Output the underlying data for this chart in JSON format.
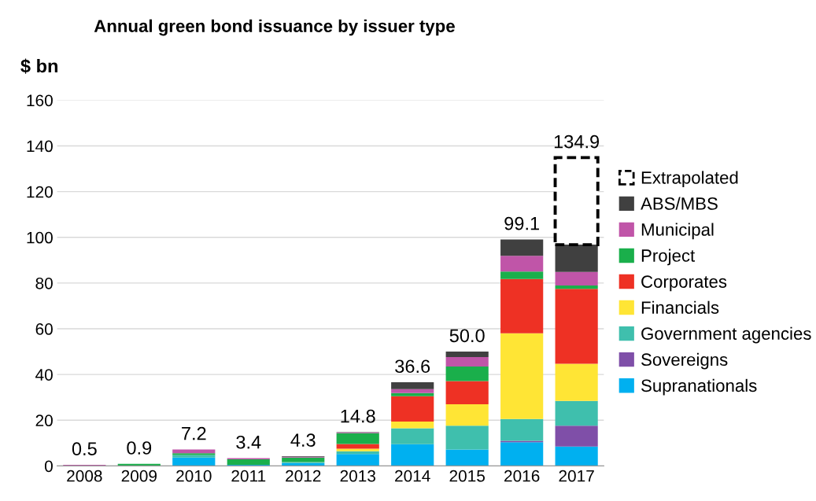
{
  "chart_data": {
    "type": "bar",
    "title": "Annual green bond issuance by issuer type",
    "ylabel": "$ bn",
    "categories": [
      "2008",
      "2009",
      "2010",
      "2011",
      "2012",
      "2013",
      "2014",
      "2015",
      "2016",
      "2017"
    ],
    "stacked": true,
    "series": [
      {
        "name": "Supranationals",
        "color": "#00b0f0",
        "values": [
          0,
          null,
          3.7,
          0.5,
          1.3,
          5.2,
          9.5,
          7.2,
          10.4,
          8.5
        ]
      },
      {
        "name": "Sovereigns",
        "color": "#7f4fa8",
        "values": [
          0,
          0,
          0,
          0,
          0,
          0,
          0,
          0,
          0.6,
          9.1
        ]
      },
      {
        "name": "Government agencies",
        "color": "#3fbfad",
        "values": [
          0,
          0,
          1.1,
          0,
          0.4,
          1.2,
          7.0,
          10.4,
          9.5,
          10.8
        ]
      },
      {
        "name": "Financials",
        "color": "#ffe535",
        "values": [
          0,
          0,
          0,
          0,
          0,
          1.1,
          2.9,
          9.4,
          37.5,
          16.3
        ]
      },
      {
        "name": "Corporates",
        "color": "#ee3124",
        "values": [
          0,
          0,
          0,
          0,
          0,
          2.1,
          11.1,
          10.1,
          23.8,
          32.8
        ]
      },
      {
        "name": "Project",
        "color": "#1aaf4b",
        "values": [
          0,
          0.9,
          0.8,
          2.4,
          2.0,
          4.7,
          1.4,
          6.4,
          3.2,
          1.4
        ]
      },
      {
        "name": "Municipal",
        "color": "#c055a8",
        "values": [
          0.5,
          0,
          1.6,
          0.5,
          0.3,
          0.3,
          1.7,
          4.1,
          6.9,
          6.0
        ]
      },
      {
        "name": "ABS/MBS",
        "color": "#404040",
        "values": [
          0,
          0,
          0,
          0,
          0.3,
          0.2,
          3.0,
          2.4,
          7.2,
          11.9
        ]
      },
      {
        "name": "Extrapolated",
        "color": "#000000",
        "line_style": "dashed",
        "values": [
          null,
          null,
          null,
          null,
          null,
          null,
          null,
          null,
          null,
          38.1
        ]
      }
    ],
    "totals": [
      "0.5",
      "0.9",
      "7.2",
      "3.4",
      "4.3",
      "14.8",
      "36.6",
      "50.0",
      "99.1",
      "134.9"
    ],
    "ylim": [
      0,
      160
    ],
    "yticks": [
      0,
      20,
      40,
      60,
      80,
      100,
      120,
      140,
      160
    ],
    "grid": "y",
    "legend": "right"
  }
}
